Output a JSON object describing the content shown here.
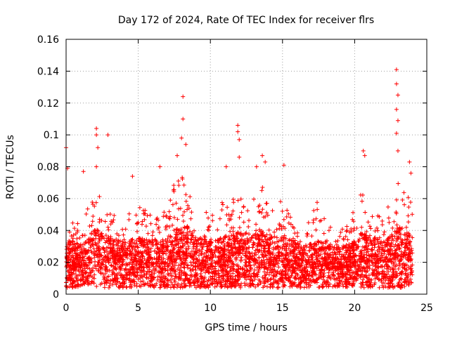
{
  "chart_data": {
    "type": "scatter",
    "title": "Day 172 of 2024, Rate Of TEC Index for receiver flrs",
    "xlabel": "GPS time / hours",
    "ylabel": "ROTI / TECUs",
    "xlim": [
      0,
      25
    ],
    "ylim": [
      0,
      0.16
    ],
    "xticks": [
      "0",
      "5",
      "10",
      "15",
      "20",
      "25"
    ],
    "yticks": [
      "0",
      "0.02",
      "0.04",
      "0.06",
      "0.08",
      "0.1",
      "0.12",
      "0.14",
      "0.16"
    ],
    "grid": true,
    "marker": "plus",
    "color": "#ff0000",
    "series": [
      {
        "name": "ROTI",
        "profile_x": [
          0,
          0.2,
          1.0,
          1.5,
          2.0,
          2.5,
          3.0,
          4.0,
          5.0,
          6.0,
          7.0,
          7.5,
          8.0,
          8.5,
          9.0,
          10.0,
          11.0,
          12.0,
          13.0,
          13.5,
          14.0,
          15.0,
          16.0,
          16.5,
          17.0,
          17.5,
          18.0,
          19.0,
          20.0,
          20.5,
          21.0,
          22.0,
          22.5,
          23.0,
          23.5,
          24.0
        ],
        "profile_median_y": [
          0.017,
          0.019,
          0.017,
          0.02,
          0.023,
          0.022,
          0.02,
          0.018,
          0.02,
          0.019,
          0.019,
          0.021,
          0.025,
          0.024,
          0.02,
          0.019,
          0.02,
          0.022,
          0.021,
          0.023,
          0.021,
          0.02,
          0.018,
          0.016,
          0.018,
          0.019,
          0.017,
          0.016,
          0.018,
          0.022,
          0.02,
          0.019,
          0.021,
          0.024,
          0.023,
          0.02
        ],
        "profile_upper_y": [
          0.048,
          0.045,
          0.045,
          0.055,
          0.065,
          0.06,
          0.052,
          0.048,
          0.058,
          0.05,
          0.055,
          0.07,
          0.075,
          0.065,
          0.05,
          0.052,
          0.062,
          0.068,
          0.065,
          0.07,
          0.06,
          0.058,
          0.045,
          0.04,
          0.055,
          0.06,
          0.045,
          0.04,
          0.055,
          0.065,
          0.05,
          0.05,
          0.06,
          0.07,
          0.065,
          0.06
        ],
        "peaks": [
          {
            "x": 0.0,
            "y": 0.092
          },
          {
            "x": 0.1,
            "y": 0.079
          },
          {
            "x": 1.2,
            "y": 0.077
          },
          {
            "x": 2.1,
            "y": 0.104
          },
          {
            "x": 2.1,
            "y": 0.1
          },
          {
            "x": 2.2,
            "y": 0.092
          },
          {
            "x": 2.1,
            "y": 0.08
          },
          {
            "x": 2.9,
            "y": 0.1
          },
          {
            "x": 4.6,
            "y": 0.074
          },
          {
            "x": 6.5,
            "y": 0.08
          },
          {
            "x": 7.7,
            "y": 0.087
          },
          {
            "x": 8.0,
            "y": 0.098
          },
          {
            "x": 8.1,
            "y": 0.11
          },
          {
            "x": 8.1,
            "y": 0.124
          },
          {
            "x": 8.3,
            "y": 0.094
          },
          {
            "x": 11.1,
            "y": 0.08
          },
          {
            "x": 11.9,
            "y": 0.106
          },
          {
            "x": 11.9,
            "y": 0.102
          },
          {
            "x": 12.0,
            "y": 0.097
          },
          {
            "x": 12.0,
            "y": 0.086
          },
          {
            "x": 13.2,
            "y": 0.08
          },
          {
            "x": 13.6,
            "y": 0.087
          },
          {
            "x": 13.8,
            "y": 0.083
          },
          {
            "x": 15.1,
            "y": 0.081
          },
          {
            "x": 20.6,
            "y": 0.09
          },
          {
            "x": 20.7,
            "y": 0.087
          },
          {
            "x": 22.9,
            "y": 0.141
          },
          {
            "x": 22.9,
            "y": 0.132
          },
          {
            "x": 23.0,
            "y": 0.125
          },
          {
            "x": 22.9,
            "y": 0.116
          },
          {
            "x": 23.0,
            "y": 0.109
          },
          {
            "x": 22.9,
            "y": 0.101
          },
          {
            "x": 23.0,
            "y": 0.09
          },
          {
            "x": 23.8,
            "y": 0.083
          },
          {
            "x": 23.9,
            "y": 0.076
          }
        ]
      }
    ]
  }
}
